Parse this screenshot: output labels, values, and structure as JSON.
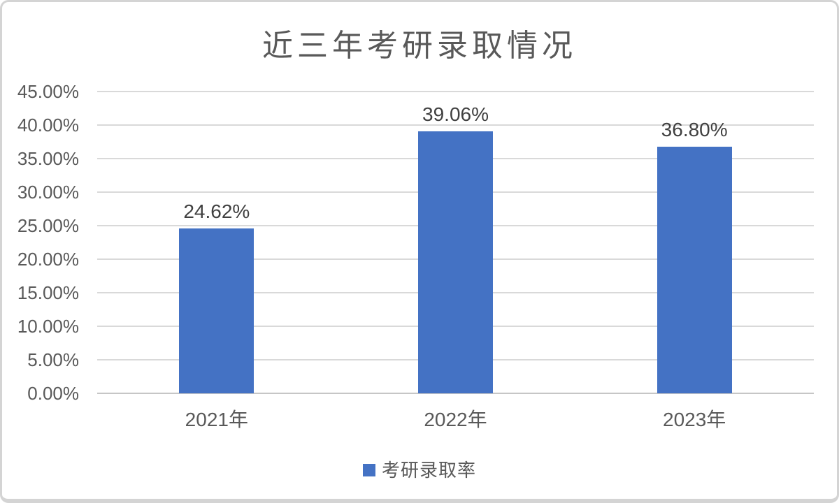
{
  "chart_data": {
    "type": "bar",
    "title": "近三年考研录取情况",
    "categories": [
      "2021年",
      "2022年",
      "2023年"
    ],
    "series": [
      {
        "name": "考研录取率",
        "values": [
          24.62,
          39.06,
          36.8
        ]
      }
    ],
    "value_labels": [
      "24.62%",
      "39.06%",
      "36.80%"
    ],
    "y_ticks": [
      "0.00%",
      "5.00%",
      "10.00%",
      "15.00%",
      "20.00%",
      "25.00%",
      "30.00%",
      "35.00%",
      "40.00%",
      "45.00%"
    ],
    "ylim": [
      0,
      45
    ],
    "y_step": 5,
    "xlabel": "",
    "ylabel": "",
    "grid": true,
    "legend_position": "bottom",
    "legend_label": "考研录取率",
    "colors": {
      "bar": "#4472C4",
      "gridline": "#D9D9D9",
      "axis_line": "#C6C6C6",
      "title_text": "#595959",
      "axis_text": "#595959",
      "data_label_text": "#404040"
    }
  }
}
